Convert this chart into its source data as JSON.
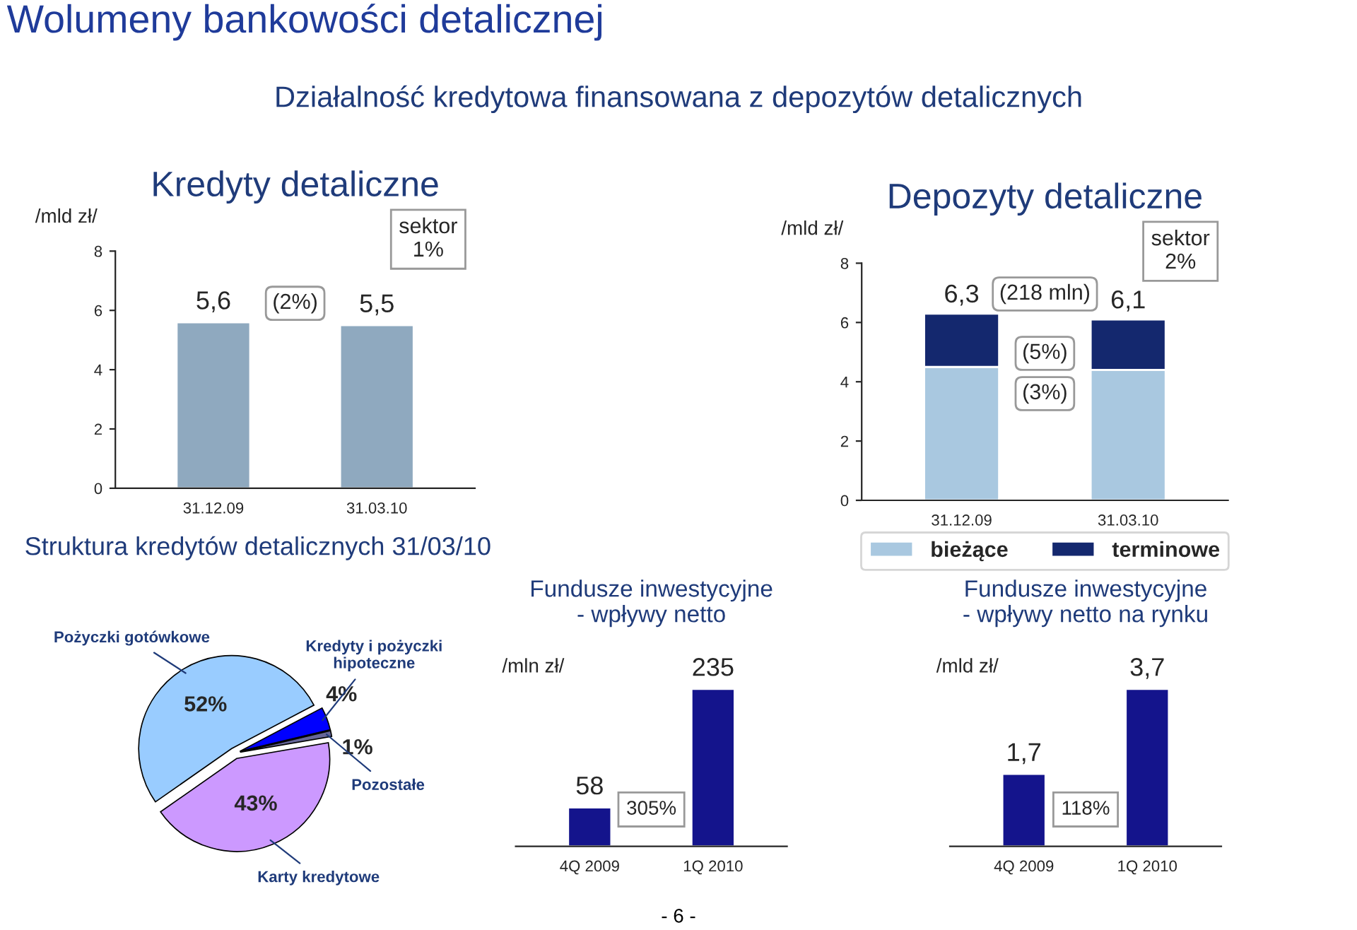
{
  "chart_data": [
    {
      "type": "bar",
      "title": "Kredyty detaliczne",
      "ylabel": "/mld zł/",
      "categories": [
        "31.12.09",
        "31.03.10"
      ],
      "values": [
        5.6,
        5.5
      ],
      "value_labels": [
        "5,6",
        "5,5"
      ],
      "color": "#8fa9bf",
      "ylim": [
        0,
        8
      ],
      "yticks": [
        0,
        2,
        4,
        6,
        8
      ],
      "annotations": [
        "Wolumeny bankowości detalicznej",
        "Działalność kredytowa finansowana z depozytów detalicznych",
        "(2%)",
        "sektor\n1%",
        "- 6 -"
      ]
    },
    {
      "type": "bar",
      "stacked": true,
      "title": "Depozyty detaliczne",
      "ylabel": "/mld zł/",
      "categories": [
        "31.12.09",
        "31.03.10"
      ],
      "series": [
        {
          "name": "bieżące",
          "color": "#a9c8e0",
          "values": [
            4.5,
            4.4
          ]
        },
        {
          "name": "terminowe",
          "color": "#14286e",
          "values": [
            1.8,
            1.7
          ]
        }
      ],
      "totals": [
        "6,3",
        "6,1"
      ],
      "ylim": [
        0,
        8
      ],
      "yticks": [
        0,
        2,
        4,
        6,
        8
      ],
      "legend": "bottom",
      "annotations": [
        "(218 mln)",
        "(5%)",
        "(3%)",
        "sektor\n2%"
      ]
    },
    {
      "type": "pie",
      "title": "Struktura kredytów detalicznych 31/03/10",
      "categories": [
        "Pożyczki gotówkowe",
        "Kredyty i pożyczki\nhipoteczne",
        "Pozostałe",
        "Karty kredytowe"
      ],
      "values": [
        52,
        4,
        1,
        43
      ],
      "value_labels": [
        "52%",
        "4%",
        "1%",
        "43%"
      ],
      "colors": [
        "#99ccff",
        "#0000ff",
        "#666699",
        "#cc99ff"
      ]
    },
    {
      "type": "bar",
      "title": "Fundusze inwestycyjne\n- wpływy netto",
      "ylabel": "/mln zł/",
      "categories": [
        "4Q 2009",
        "1Q 2010"
      ],
      "values": [
        58,
        235
      ],
      "data_labels": true,
      "color": "#14148c",
      "annotations": [
        "305%"
      ]
    },
    {
      "type": "bar",
      "title": "Fundusze inwestycyjne\n- wpływy netto na rynku",
      "ylabel": "/mld zł/",
      "categories": [
        "4Q 2009",
        "1Q 2010"
      ],
      "values": [
        1.7,
        3.7
      ],
      "value_labels": [
        "1,7",
        "3,7"
      ],
      "color": "#14148c",
      "annotations": [
        "118%"
      ]
    }
  ]
}
